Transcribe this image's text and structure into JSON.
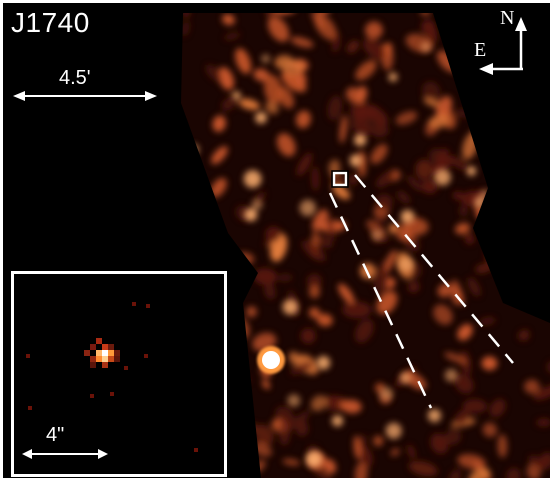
{
  "title": "J1740",
  "main_scale_bar": {
    "label": "4.5'"
  },
  "compass": {
    "north": "N",
    "east": "E"
  },
  "inset": {
    "scale_label": "4\""
  },
  "colors": {
    "background": "#000000",
    "emission_low": "#5a1a0c",
    "emission_mid": "#c8562a",
    "emission_high": "#ffb070",
    "overlay_lines": "#ffffff"
  },
  "markers": [
    {
      "name": "source-box",
      "shape": "square-outline"
    },
    {
      "name": "bright-point-source",
      "shape": "white-blob"
    }
  ],
  "overlays": [
    {
      "name": "dashed-tail-lines",
      "style": "dashed",
      "count": 2
    }
  ]
}
